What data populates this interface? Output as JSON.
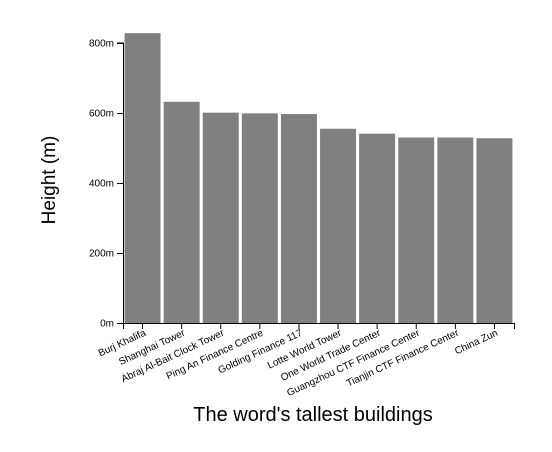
{
  "chart_data": {
    "type": "bar",
    "categories": [
      "Burj Khalifa",
      "Shanghai Tower",
      "Abraj Al-Bait Clock Tower",
      "Ping An Finance Centre",
      "Golding Finance 117",
      "Lotte World Tower",
      "One World Trade Center",
      "Guangzhou CTF Finance Center",
      "Tianjin CTF Finance Center",
      "China Zun"
    ],
    "values": [
      828,
      632,
      601,
      599,
      597,
      555,
      541,
      530,
      530,
      528
    ],
    "xlabel": "The word's tallest buildings",
    "ylabel": "Height (m)",
    "ylim": [
      0,
      800
    ],
    "y_ticks": [
      0,
      200,
      400,
      600,
      800
    ],
    "y_tick_suffix": "m",
    "grid": false,
    "bar_color": "#808080"
  }
}
